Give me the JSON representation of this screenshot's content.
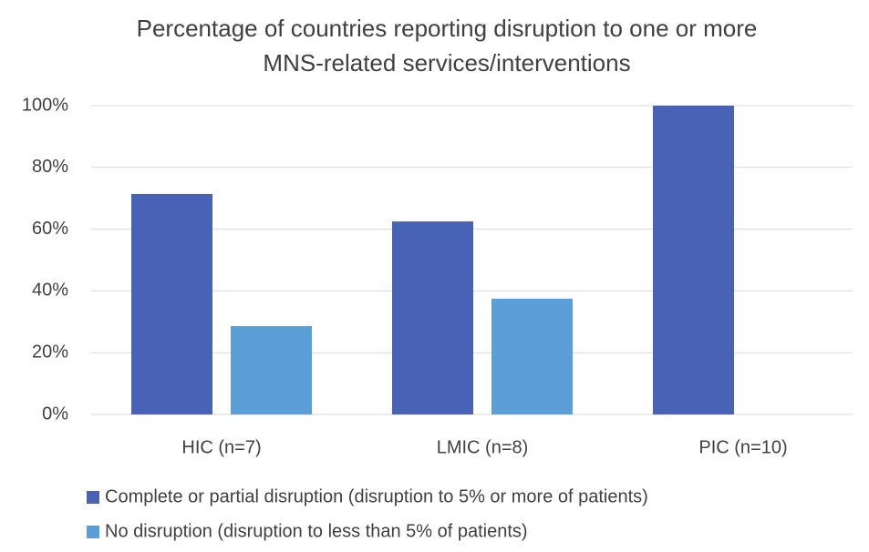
{
  "chart_data": {
    "type": "bar",
    "title": "Percentage of countries reporting disruption to one or more MNS-related services/interventions",
    "categories": [
      "HIC (n=7)",
      "LMIC (n=8)",
      "PIC (n=10)"
    ],
    "series": [
      {
        "name": "Complete or partial disruption (disruption to 5% or more of patients)",
        "color": "#4863b5",
        "values": [
          71.4,
          62.5,
          100
        ]
      },
      {
        "name": "No disruption (disruption to less than 5% of patients)",
        "color": "#5b9fd8",
        "values": [
          28.6,
          37.5,
          0
        ]
      }
    ],
    "ylim": [
      0,
      100
    ],
    "yticks": [
      {
        "value": 0,
        "label": "0%"
      },
      {
        "value": 20,
        "label": "20%"
      },
      {
        "value": 40,
        "label": "40%"
      },
      {
        "value": 60,
        "label": "60%"
      },
      {
        "value": 80,
        "label": "80%"
      },
      {
        "value": 100,
        "label": "100%"
      }
    ],
    "grid": true,
    "legend": "bottom"
  }
}
